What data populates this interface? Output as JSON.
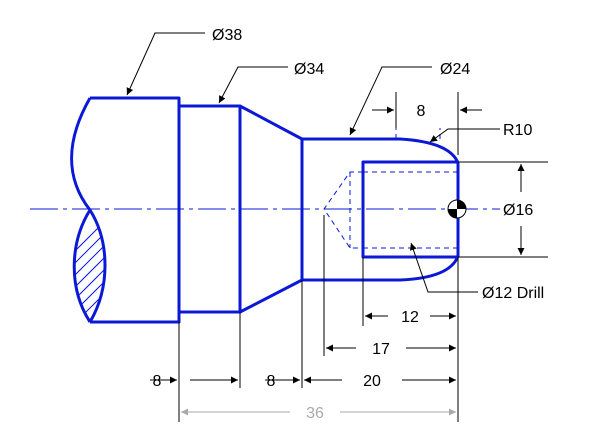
{
  "colors": {
    "part": "#0b18d6",
    "dimension": "#000000",
    "gray_dimension": "#aaaaaa",
    "background": "#ffffff"
  },
  "labels": {
    "dia_38": "Ø38",
    "dia_34": "Ø34",
    "dia_24": "Ø24",
    "dim_8_top": "8",
    "r10": "R10",
    "dia_16": "Ø16",
    "drill": "Ø12 Drill",
    "dim_12": "12",
    "dim_17": "17",
    "dim_8_left": "8",
    "dim_8_mid": "8",
    "dim_20": "20",
    "dim_36": "36"
  }
}
